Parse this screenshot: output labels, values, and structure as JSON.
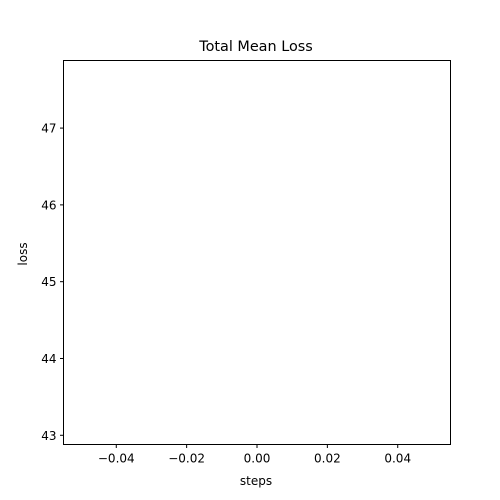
{
  "chart_data": {
    "type": "line",
    "title": "Total Mean Loss",
    "xlabel": "steps",
    "ylabel": "loss",
    "xlim": [
      -0.055,
      0.055
    ],
    "ylim": [
      42.88,
      47.88
    ],
    "xticks": [
      -0.04,
      -0.02,
      0.0,
      0.02,
      0.04
    ],
    "xtick_labels": [
      "−0.04",
      "−0.02",
      "0.00",
      "0.02",
      "0.04"
    ],
    "yticks": [
      43,
      44,
      45,
      46,
      47
    ],
    "ytick_labels": [
      "43",
      "44",
      "45",
      "46",
      "47"
    ],
    "grid": false,
    "series": [
      {
        "name": "loss",
        "x": [],
        "y": []
      }
    ]
  }
}
